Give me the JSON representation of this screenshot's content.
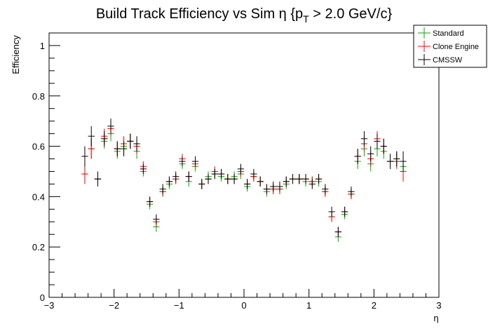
{
  "chart_data": {
    "type": "scatter",
    "title_main": "Build Track Efficiency vs Sim η {p",
    "title_sub": "T",
    "title_tail": " > 2.0 GeV/c}",
    "xlabel": "η",
    "ylabel": "Efficiency",
    "xlim": [
      -3,
      3
    ],
    "ylim": [
      0,
      1.05
    ],
    "x_ticks": [
      -3,
      -2,
      -1,
      0,
      1,
      2,
      3
    ],
    "x_tick_labels": [
      "−3",
      "−2",
      "−1",
      "0",
      "1",
      "2",
      "3"
    ],
    "y_ticks": [
      0,
      0.2,
      0.4,
      0.6,
      0.8,
      1
    ],
    "y_tick_labels": [
      "0",
      "0.2",
      "0.4",
      "0.6",
      "0.8",
      "1"
    ],
    "bin_half_width": 0.05,
    "legend_position": "top-right",
    "series": [
      {
        "name": "Standard",
        "color": "#00aa00",
        "points": [
          [
            -2.45,
            0.49,
            0.04
          ],
          [
            -2.35,
            0.59,
            0.04
          ],
          [
            -2.25,
            0.47,
            0.03
          ],
          [
            -2.15,
            0.62,
            0.03
          ],
          [
            -2.05,
            0.65,
            0.03
          ],
          [
            -1.95,
            0.58,
            0.03
          ],
          [
            -1.85,
            0.6,
            0.03
          ],
          [
            -1.75,
            0.62,
            0.03
          ],
          [
            -1.65,
            0.58,
            0.03
          ],
          [
            -1.55,
            0.5,
            0.02
          ],
          [
            -1.45,
            0.37,
            0.02
          ],
          [
            -1.35,
            0.28,
            0.02
          ],
          [
            -1.25,
            0.42,
            0.02
          ],
          [
            -1.15,
            0.45,
            0.02
          ],
          [
            -1.05,
            0.47,
            0.02
          ],
          [
            -0.95,
            0.53,
            0.02
          ],
          [
            -0.85,
            0.46,
            0.02
          ],
          [
            -0.75,
            0.52,
            0.02
          ],
          [
            -0.65,
            0.45,
            0.02
          ],
          [
            -0.55,
            0.48,
            0.02
          ],
          [
            -0.45,
            0.49,
            0.02
          ],
          [
            -0.35,
            0.48,
            0.02
          ],
          [
            -0.25,
            0.47,
            0.02
          ],
          [
            -0.15,
            0.48,
            0.02
          ],
          [
            -0.05,
            0.49,
            0.02
          ],
          [
            0.05,
            0.44,
            0.02
          ],
          [
            0.15,
            0.48,
            0.02
          ],
          [
            0.25,
            0.46,
            0.02
          ],
          [
            0.35,
            0.42,
            0.02
          ],
          [
            0.45,
            0.43,
            0.02
          ],
          [
            0.55,
            0.43,
            0.02
          ],
          [
            0.65,
            0.45,
            0.02
          ],
          [
            0.75,
            0.47,
            0.02
          ],
          [
            0.85,
            0.47,
            0.02
          ],
          [
            0.95,
            0.46,
            0.02
          ],
          [
            1.05,
            0.46,
            0.02
          ],
          [
            1.15,
            0.46,
            0.02
          ],
          [
            1.25,
            0.42,
            0.02
          ],
          [
            1.35,
            0.32,
            0.02
          ],
          [
            1.45,
            0.24,
            0.02
          ],
          [
            1.55,
            0.33,
            0.02
          ],
          [
            1.65,
            0.41,
            0.02
          ],
          [
            1.75,
            0.54,
            0.03
          ],
          [
            1.85,
            0.59,
            0.03
          ],
          [
            1.95,
            0.53,
            0.03
          ],
          [
            2.05,
            0.59,
            0.03
          ],
          [
            2.15,
            0.58,
            0.03
          ],
          [
            2.25,
            0.54,
            0.03
          ],
          [
            2.35,
            0.55,
            0.03
          ],
          [
            2.45,
            0.52,
            0.04
          ]
        ]
      },
      {
        "name": "Clone Engine",
        "color": "#ff0000",
        "points": [
          [
            -2.45,
            0.49,
            0.04
          ],
          [
            -2.35,
            0.59,
            0.04
          ],
          [
            -2.25,
            0.47,
            0.03
          ],
          [
            -2.15,
            0.64,
            0.03
          ],
          [
            -2.05,
            0.67,
            0.03
          ],
          [
            -1.95,
            0.59,
            0.03
          ],
          [
            -1.85,
            0.61,
            0.03
          ],
          [
            -1.75,
            0.62,
            0.03
          ],
          [
            -1.65,
            0.6,
            0.03
          ],
          [
            -1.55,
            0.52,
            0.02
          ],
          [
            -1.45,
            0.38,
            0.02
          ],
          [
            -1.35,
            0.3,
            0.02
          ],
          [
            -1.25,
            0.42,
            0.02
          ],
          [
            -1.15,
            0.46,
            0.02
          ],
          [
            -1.05,
            0.47,
            0.02
          ],
          [
            -0.95,
            0.55,
            0.02
          ],
          [
            -0.85,
            0.48,
            0.02
          ],
          [
            -0.75,
            0.53,
            0.02
          ],
          [
            -0.65,
            0.45,
            0.02
          ],
          [
            -0.55,
            0.47,
            0.02
          ],
          [
            -0.45,
            0.5,
            0.02
          ],
          [
            -0.35,
            0.49,
            0.02
          ],
          [
            -0.25,
            0.47,
            0.02
          ],
          [
            -0.15,
            0.47,
            0.02
          ],
          [
            -0.05,
            0.5,
            0.02
          ],
          [
            0.05,
            0.45,
            0.02
          ],
          [
            0.15,
            0.48,
            0.02
          ],
          [
            0.25,
            0.46,
            0.02
          ],
          [
            0.35,
            0.43,
            0.02
          ],
          [
            0.45,
            0.43,
            0.02
          ],
          [
            0.55,
            0.43,
            0.02
          ],
          [
            0.65,
            0.46,
            0.02
          ],
          [
            0.75,
            0.47,
            0.02
          ],
          [
            0.85,
            0.47,
            0.02
          ],
          [
            0.95,
            0.47,
            0.02
          ],
          [
            1.05,
            0.46,
            0.02
          ],
          [
            1.15,
            0.47,
            0.02
          ],
          [
            1.25,
            0.42,
            0.02
          ],
          [
            1.35,
            0.32,
            0.02
          ],
          [
            1.45,
            0.26,
            0.02
          ],
          [
            1.55,
            0.34,
            0.02
          ],
          [
            1.65,
            0.41,
            0.02
          ],
          [
            1.75,
            0.56,
            0.03
          ],
          [
            1.85,
            0.61,
            0.03
          ],
          [
            1.95,
            0.55,
            0.03
          ],
          [
            2.05,
            0.63,
            0.03
          ],
          [
            2.15,
            0.6,
            0.03
          ],
          [
            2.25,
            0.54,
            0.03
          ],
          [
            2.35,
            0.54,
            0.03
          ],
          [
            2.45,
            0.5,
            0.04
          ]
        ]
      },
      {
        "name": "CMSSW",
        "color": "#000000",
        "points": [
          [
            -2.45,
            0.56,
            0.04
          ],
          [
            -2.35,
            0.64,
            0.04
          ],
          [
            -2.25,
            0.47,
            0.03
          ],
          [
            -2.15,
            0.63,
            0.03
          ],
          [
            -2.05,
            0.68,
            0.03
          ],
          [
            -1.95,
            0.59,
            0.03
          ],
          [
            -1.85,
            0.59,
            0.03
          ],
          [
            -1.75,
            0.62,
            0.03
          ],
          [
            -1.65,
            0.61,
            0.03
          ],
          [
            -1.55,
            0.51,
            0.02
          ],
          [
            -1.45,
            0.38,
            0.02
          ],
          [
            -1.35,
            0.31,
            0.02
          ],
          [
            -1.25,
            0.43,
            0.02
          ],
          [
            -1.15,
            0.46,
            0.02
          ],
          [
            -1.05,
            0.48,
            0.02
          ],
          [
            -0.95,
            0.54,
            0.02
          ],
          [
            -0.85,
            0.48,
            0.02
          ],
          [
            -0.75,
            0.54,
            0.02
          ],
          [
            -0.65,
            0.45,
            0.02
          ],
          [
            -0.55,
            0.47,
            0.02
          ],
          [
            -0.45,
            0.49,
            0.02
          ],
          [
            -0.35,
            0.49,
            0.02
          ],
          [
            -0.25,
            0.47,
            0.02
          ],
          [
            -0.15,
            0.47,
            0.02
          ],
          [
            -0.05,
            0.51,
            0.02
          ],
          [
            0.05,
            0.45,
            0.02
          ],
          [
            0.15,
            0.49,
            0.02
          ],
          [
            0.25,
            0.46,
            0.02
          ],
          [
            0.35,
            0.43,
            0.02
          ],
          [
            0.45,
            0.44,
            0.02
          ],
          [
            0.55,
            0.44,
            0.02
          ],
          [
            0.65,
            0.46,
            0.02
          ],
          [
            0.75,
            0.47,
            0.02
          ],
          [
            0.85,
            0.47,
            0.02
          ],
          [
            0.95,
            0.47,
            0.02
          ],
          [
            1.05,
            0.45,
            0.02
          ],
          [
            1.15,
            0.47,
            0.02
          ],
          [
            1.25,
            0.43,
            0.02
          ],
          [
            1.35,
            0.34,
            0.02
          ],
          [
            1.45,
            0.26,
            0.02
          ],
          [
            1.55,
            0.34,
            0.02
          ],
          [
            1.65,
            0.42,
            0.02
          ],
          [
            1.75,
            0.56,
            0.03
          ],
          [
            1.85,
            0.63,
            0.03
          ],
          [
            1.95,
            0.57,
            0.03
          ],
          [
            2.05,
            0.62,
            0.03
          ],
          [
            2.15,
            0.6,
            0.03
          ],
          [
            2.25,
            0.54,
            0.03
          ],
          [
            2.35,
            0.55,
            0.03
          ],
          [
            2.45,
            0.54,
            0.04
          ]
        ]
      }
    ]
  }
}
